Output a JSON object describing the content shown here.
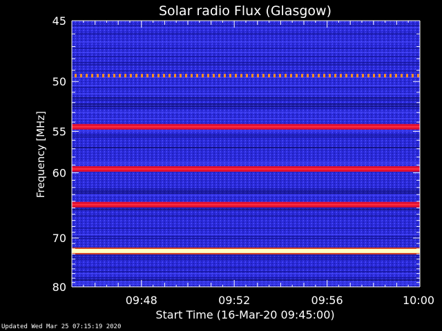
{
  "chart_data": {
    "type": "heatmap",
    "title": "Solar radio Flux (Glasgow)",
    "xlabel": "Start Time (16-Mar-20 09:45:00)",
    "ylabel": "Frequency [MHz]",
    "x_ticks": [
      "09:48",
      "09:52",
      "09:56",
      "10:00"
    ],
    "x_tick_minutes": [
      3,
      7,
      11,
      15
    ],
    "xlim_minutes": [
      0,
      15
    ],
    "y_ticks": [
      45,
      50,
      55,
      60,
      70,
      80
    ],
    "ylim": [
      45,
      80
    ],
    "y_scale": "reciprocal",
    "bands": [
      {
        "freq": 49.5,
        "intensity": "dotted-orange"
      },
      {
        "freq": 54.5,
        "intensity": "high"
      },
      {
        "freq": 59.5,
        "intensity": "high"
      },
      {
        "freq": 64.5,
        "intensity": "high"
      },
      {
        "freq": 72.4,
        "intensity": "very-high"
      }
    ],
    "colors": {
      "background": "#000000",
      "low": "#1a1ab4",
      "mid": "#3c3cff",
      "high": "#e01030",
      "very_high": "#ffffc0",
      "spike": "#ff9020"
    }
  },
  "footer": "Updated Wed Mar 25 07:15:19 2020"
}
